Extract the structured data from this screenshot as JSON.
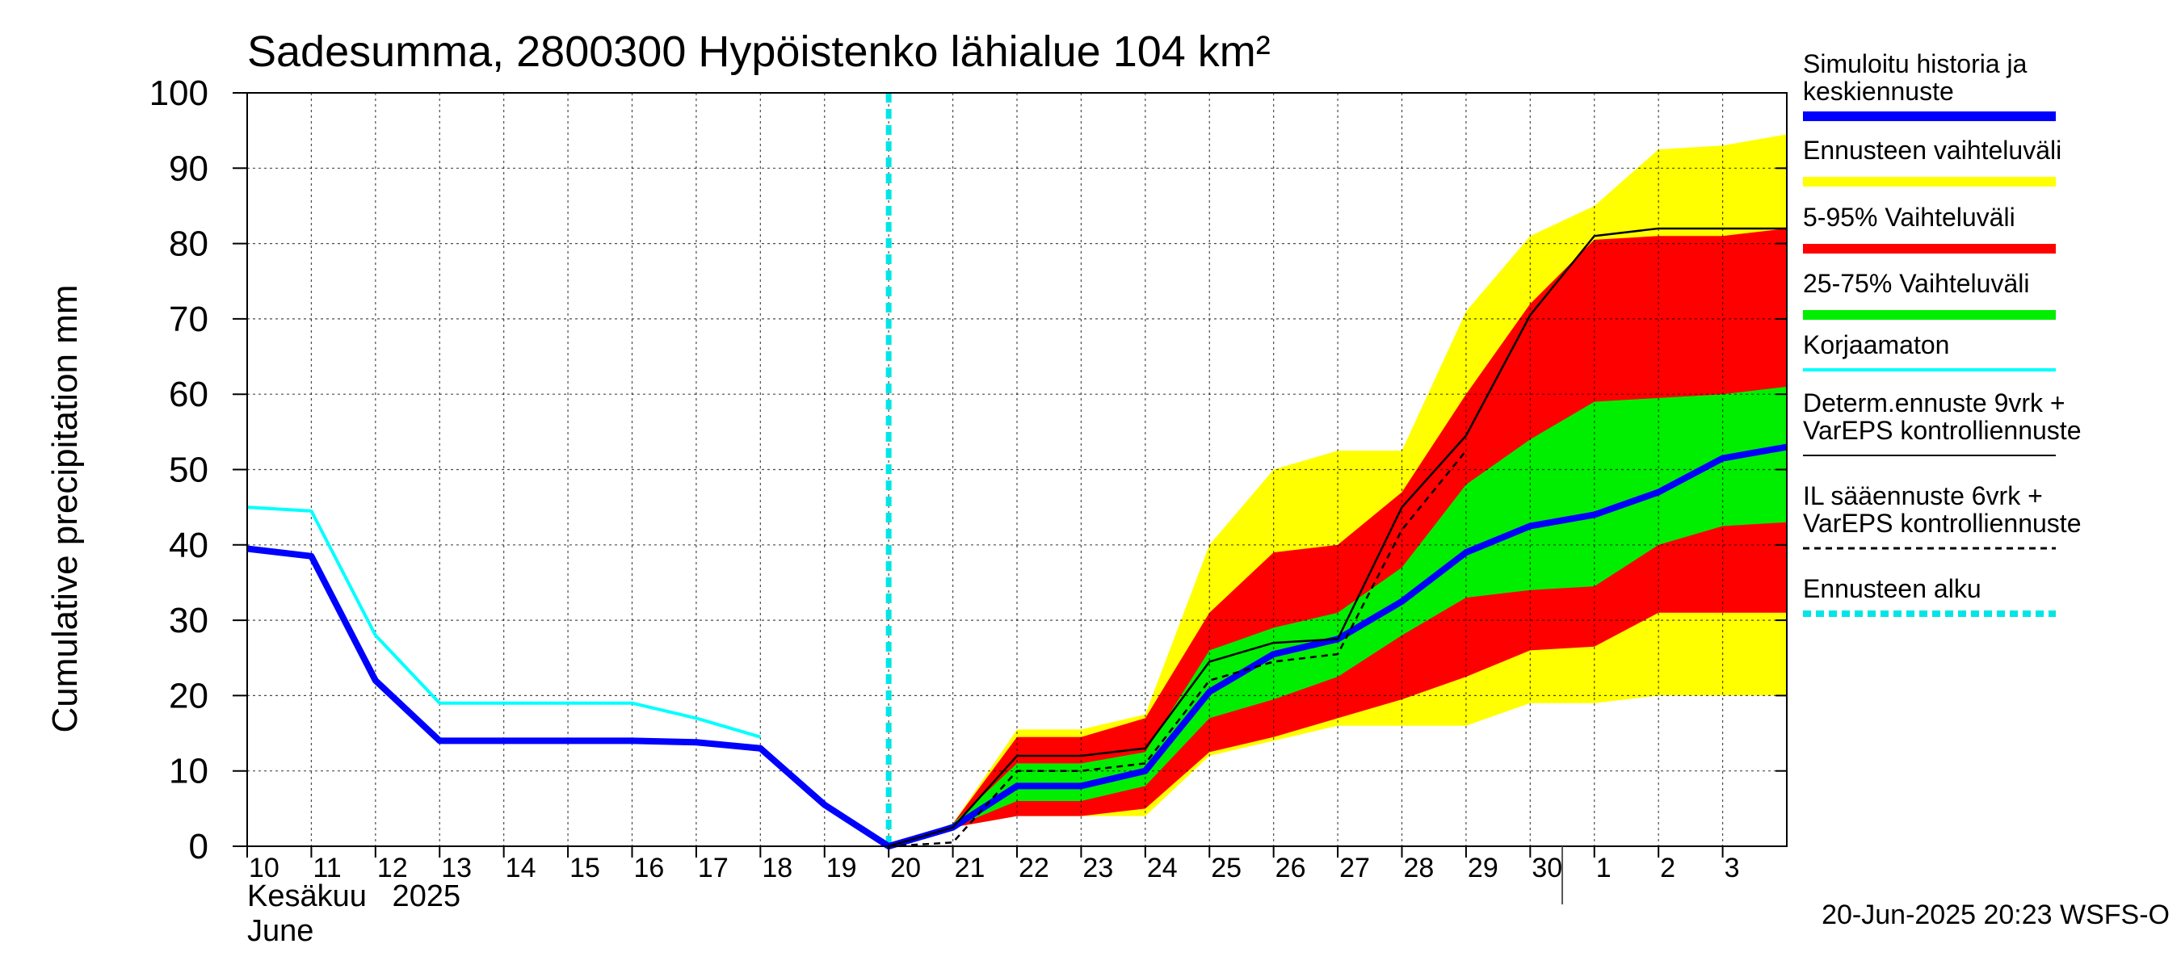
{
  "chart_data": {
    "type": "line",
    "title": "Sadesumma, 2800300 Hypöistenko lähialue 104 km²",
    "ylabel": "Cumulative precipitation   mm",
    "ylim": [
      0,
      100
    ],
    "y_ticks": [
      "0",
      "10",
      "20",
      "30",
      "40",
      "50",
      "60",
      "70",
      "80",
      "90",
      "100"
    ],
    "x_ticks": [
      {
        "day": 0,
        "label": "10"
      },
      {
        "day": 1,
        "label": "11"
      },
      {
        "day": 2,
        "label": "12"
      },
      {
        "day": 3,
        "label": "13"
      },
      {
        "day": 4,
        "label": "14"
      },
      {
        "day": 5,
        "label": "15"
      },
      {
        "day": 6,
        "label": "16"
      },
      {
        "day": 7,
        "label": "17"
      },
      {
        "day": 8,
        "label": "18"
      },
      {
        "day": 9,
        "label": "19"
      },
      {
        "day": 10,
        "label": "20"
      },
      {
        "day": 11,
        "label": "21"
      },
      {
        "day": 12,
        "label": "22"
      },
      {
        "day": 13,
        "label": "23"
      },
      {
        "day": 14,
        "label": "24"
      },
      {
        "day": 15,
        "label": "25"
      },
      {
        "day": 16,
        "label": "26"
      },
      {
        "day": 17,
        "label": "27"
      },
      {
        "day": 18,
        "label": "28"
      },
      {
        "day": 19,
        "label": "29"
      },
      {
        "day": 20,
        "label": "30"
      },
      {
        "day": 21,
        "label": "1"
      },
      {
        "day": 22,
        "label": "2"
      },
      {
        "day": 23,
        "label": "3"
      }
    ],
    "x_range_days": [
      0,
      24
    ],
    "month_separator_day": 20.5,
    "forecast_start_day": 10,
    "month_label": "Kesäkuu   2025",
    "month_label_en": "June",
    "timestamp": "20-Jun-2025 20:23 WSFS-O",
    "bands": [
      {
        "name": "Ennusteen vaihteluväli",
        "color": "#ffff00",
        "x": [
          10,
          11,
          12,
          13,
          14,
          15,
          16,
          17,
          18,
          19,
          20,
          21,
          22,
          23,
          24
        ],
        "lower": [
          0,
          2.5,
          4,
          4,
          4,
          12,
          14,
          16,
          16,
          16,
          19,
          19,
          20,
          20,
          20
        ],
        "upper": [
          0,
          3,
          15.5,
          15.5,
          17.5,
          40,
          50,
          52.5,
          52.5,
          71,
          81,
          85,
          92.5,
          93,
          94.5
        ]
      },
      {
        "name": "5-95% Vaihteluväli",
        "color": "#ff0000",
        "x": [
          10,
          11,
          12,
          13,
          14,
          15,
          16,
          17,
          18,
          19,
          20,
          21,
          22,
          23,
          24
        ],
        "lower": [
          0,
          2.5,
          4,
          4,
          5,
          12.5,
          14.5,
          17,
          19.5,
          22.5,
          26,
          26.5,
          31,
          31,
          31
        ],
        "upper": [
          0,
          3,
          14.5,
          14.5,
          17,
          31,
          39,
          40,
          47,
          60,
          72,
          80.5,
          81,
          81,
          82
        ]
      },
      {
        "name": "25-75% Vaihteluväli",
        "color": "#00ee00",
        "x": [
          10,
          11,
          12,
          13,
          14,
          15,
          16,
          17,
          18,
          19,
          20,
          21,
          22,
          23,
          24
        ],
        "lower": [
          0,
          2.5,
          6,
          6,
          8,
          17,
          19.5,
          22.5,
          28,
          33,
          34,
          34.5,
          40,
          42.5,
          43
        ],
        "upper": [
          0,
          3,
          11,
          11,
          12.5,
          26,
          29,
          31,
          37,
          48,
          54,
          59,
          59.5,
          60,
          61
        ]
      }
    ],
    "series": [
      {
        "name": "Korjaamaton",
        "color": "#00ffff",
        "width": 4,
        "dash": "",
        "x": [
          0,
          1,
          2,
          3,
          4,
          5,
          6,
          7,
          8
        ],
        "values": [
          45,
          44.5,
          28,
          19,
          19,
          19,
          19,
          17,
          14.5
        ]
      },
      {
        "name": "Simuloitu historia ja keskiennuste",
        "color": "#0000ff",
        "width": 8,
        "dash": "",
        "x": [
          0,
          1,
          2,
          3,
          4,
          5,
          6,
          7,
          8,
          9,
          10,
          11,
          12,
          13,
          14,
          15,
          16,
          17,
          18,
          19,
          20,
          21,
          22,
          23,
          24
        ],
        "values": [
          39.5,
          38.5,
          22,
          14,
          14,
          14,
          14,
          13.8,
          13,
          5.5,
          0,
          2.5,
          8,
          8,
          10,
          20.5,
          25.5,
          27.5,
          32.5,
          39,
          42.5,
          44,
          47,
          51.5,
          53
        ]
      },
      {
        "name": "Determ.ennuste 9vrk + VarEPS kontrolliennuste",
        "color": "#000000",
        "width": 2.5,
        "dash": "",
        "x": [
          10,
          11,
          12,
          13,
          14,
          15,
          16,
          17,
          18,
          19,
          20,
          21,
          22,
          23,
          24
        ],
        "values": [
          0,
          2.5,
          12,
          12,
          13,
          24.5,
          27,
          27.5,
          45,
          54.5,
          70.5,
          81,
          82,
          82,
          82
        ]
      },
      {
        "name": "IL sääennuste 6vrk + VarEPS kontrolliennuste",
        "color": "#000000",
        "width": 2.5,
        "dash": "8,6",
        "x": [
          10,
          11,
          12,
          13,
          14,
          15,
          16,
          17,
          18,
          19
        ],
        "values": [
          0,
          0.5,
          10,
          10,
          11,
          22,
          24.5,
          25.5,
          42,
          52.5
        ]
      }
    ],
    "legend": [
      {
        "label": "Simuloitu historia ja",
        "label2": "keskiennuste",
        "color": "#0000ff",
        "style": "thick"
      },
      {
        "label": "Ennusteen vaihteluväli",
        "label2": "",
        "color": "#ffff00",
        "style": "thick"
      },
      {
        "label": "5-95% Vaihteluväli",
        "label2": "",
        "color": "#ff0000",
        "style": "thick"
      },
      {
        "label": "25-75% Vaihteluväli",
        "label2": "",
        "color": "#00ee00",
        "style": "thick"
      },
      {
        "label": "Korjaamaton",
        "label2": "",
        "color": "#00ffff",
        "style": "thin"
      },
      {
        "label": "Determ.ennuste 9vrk +",
        "label2": "VarEPS kontrolliennuste",
        "color": "#000000",
        "style": "line"
      },
      {
        "label": "IL sääennuste 6vrk  +",
        "label2": "  VarEPS kontrolliennuste",
        "color": "#000000",
        "style": "dashed"
      },
      {
        "label": "Ennusteen alku",
        "label2": "",
        "color": "#00e5e5",
        "style": "dotted"
      }
    ]
  }
}
